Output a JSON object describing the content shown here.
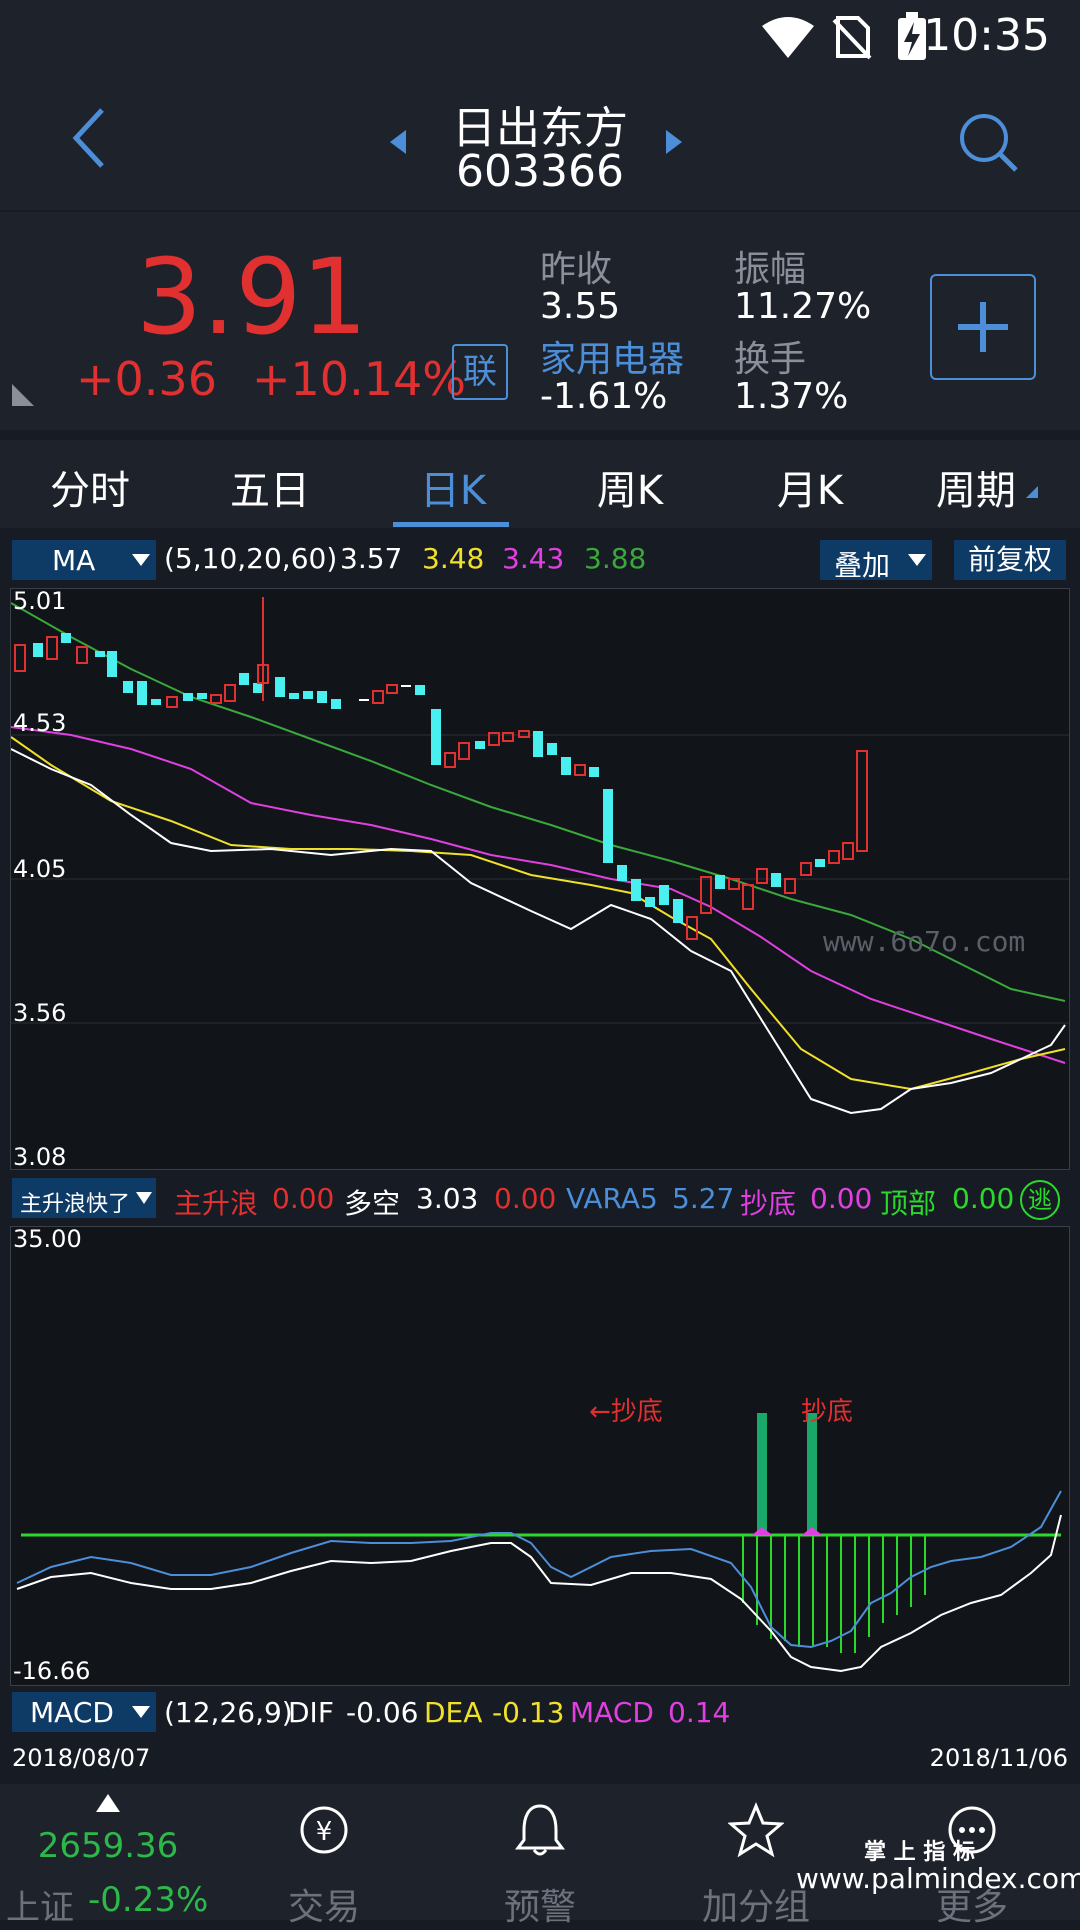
{
  "status_bar": {
    "time": "10:35"
  },
  "header": {
    "name": "日出东方",
    "code": "603366"
  },
  "quote": {
    "price": "3.91",
    "change": "+0.36",
    "change_pct": "+10.14%",
    "linked_badge": "联",
    "prev_close_label": "昨收",
    "prev_close": "3.55",
    "amplitude_label": "振幅",
    "amplitude": "11.27%",
    "sector_label": "家用电器",
    "sector_change": "-1.61%",
    "turnover_label": "换手",
    "turnover": "1.37%",
    "colors": {
      "up": "#e03030",
      "down": "#2db84a",
      "accent": "#4c8fd8"
    }
  },
  "tabs": [
    {
      "label": "分时"
    },
    {
      "label": "五日"
    },
    {
      "label": "日K",
      "active": true
    },
    {
      "label": "周K"
    },
    {
      "label": "月K"
    },
    {
      "label": "周期"
    }
  ],
  "kline_panel": {
    "indicator": "MA",
    "params": "(5,10,20,60)",
    "ma5": "3.57",
    "ma10": "3.48",
    "ma20": "3.43",
    "ma60": "3.88",
    "overlay_label": "叠加",
    "adjust_label": "前复权",
    "y_ticks": [
      "5.01",
      "4.53",
      "4.05",
      "3.56",
      "3.08"
    ],
    "watermark": "www.6o7o.com",
    "colors": {
      "ma5": "#ffffff",
      "ma10": "#f0e02a",
      "ma20": "#e040e0",
      "ma60": "#3aa83a",
      "down_candle": "#4af0f0",
      "up_candle": "#e03030"
    }
  },
  "sub_panel": {
    "indicator": "主升浪快了",
    "zsl_label": "主升浪",
    "zsl_value": "0.00",
    "dk_label": "多空",
    "dk_value": "3.03",
    "dk_value2": "0.00",
    "vara5_label": "VARA5",
    "vara5_value": "5.27",
    "cd_label": "抄底",
    "cd_value": "0.00",
    "db_label": "顶部",
    "db_value": "0.00",
    "escape_label": "逃",
    "y_top": "35.00",
    "y_bottom": "-16.66",
    "annotation1": "←抄底",
    "annotation2": "抄底"
  },
  "macd_panel": {
    "indicator": "MACD",
    "params": "(12,26,9)",
    "dif_label": "DIF",
    "dif": "-0.06",
    "dea_label": "DEA",
    "dea": "-0.13",
    "macd_label": "MACD",
    "macd": "0.14"
  },
  "date_range": {
    "start": "2018/08/07",
    "end": "2018/11/06"
  },
  "bottom_nav": {
    "index_value": "2659.36",
    "index_name": "上证",
    "index_change": "-0.23%",
    "trade_label": "交易",
    "alert_label": "预警",
    "watchlist_label": "加分组",
    "more_label": "更多",
    "watermark_cn": "掌 上 指 标",
    "watermark_url": "www.palmindex.com"
  }
}
